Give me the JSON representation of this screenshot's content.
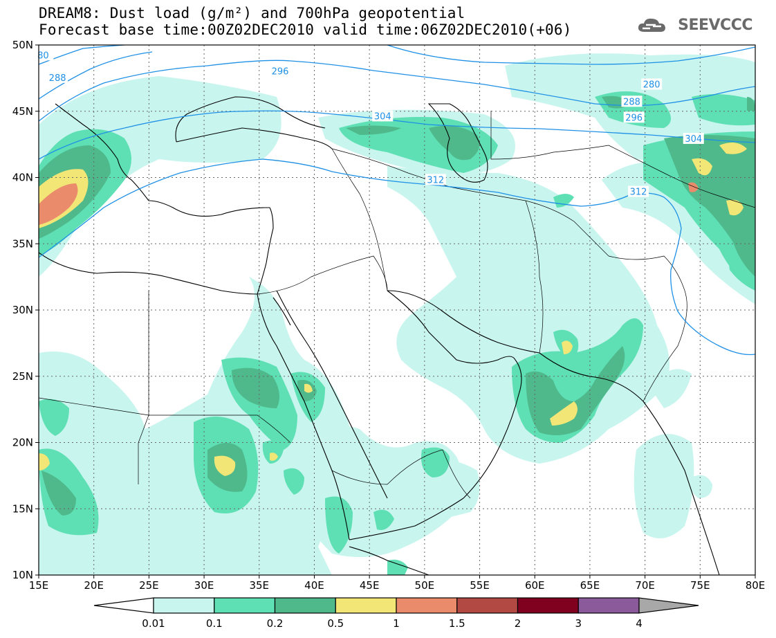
{
  "header": {
    "title_line1": "DREAM8: Dust load (g/m²) and 700hPa geopotential",
    "title_line2": "Forecast base time:00Z02DEC2010 valid time:06Z02DEC2010(+06)",
    "logo_text": "SEEVCCC"
  },
  "map": {
    "lon_labels": [
      "15E",
      "20E",
      "25E",
      "30E",
      "35E",
      "40E",
      "45E",
      "50E",
      "55E",
      "60E",
      "65E",
      "70E",
      "75E",
      "80E"
    ],
    "lat_labels": [
      "50N",
      "45N",
      "40N",
      "35N",
      "30N",
      "25N",
      "20N",
      "15N",
      "10N"
    ],
    "lon_range": [
      15,
      80
    ],
    "lat_range": [
      10,
      50
    ],
    "geopotential_labels": [
      {
        "text": "280",
        "lon": 70.6,
        "lat": 47.0
      },
      {
        "text": "288",
        "lon": 16.7,
        "lat": 47.5
      },
      {
        "text": "288",
        "lon": 68.8,
        "lat": 45.7
      },
      {
        "text": "296",
        "lon": 36.9,
        "lat": 48.0
      },
      {
        "text": "296",
        "lon": 69.0,
        "lat": 44.5
      },
      {
        "text": "304",
        "lon": 46.2,
        "lat": 44.6
      },
      {
        "text": "304",
        "lon": 74.4,
        "lat": 42.9
      },
      {
        "text": "312",
        "lon": 51.0,
        "lat": 39.8
      },
      {
        "text": "312",
        "lon": 69.4,
        "lat": 38.9
      },
      {
        "text": "80",
        "lon": 15.4,
        "lat": 49.2
      }
    ]
  },
  "legend": {
    "labels": [
      "0.01",
      "0.1",
      "0.2",
      "0.5",
      "1",
      "1.5",
      "2",
      "3",
      "4"
    ],
    "colors": [
      "#c8f5ee",
      "#5ee0b4",
      "#4fb98c",
      "#f2e676",
      "#ea8c6c",
      "#b24a43",
      "#800020",
      "#8a5a9a"
    ],
    "under_color": "#ffffff",
    "over_color": "#a8a8a8"
  },
  "colors": {
    "contour": "#1e90e6",
    "coast": "#000000",
    "grid": "#666666"
  }
}
